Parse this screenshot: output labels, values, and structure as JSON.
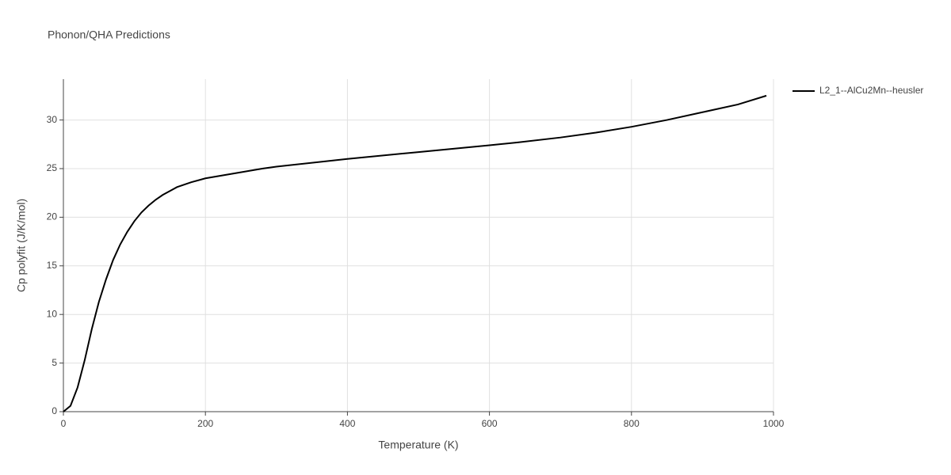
{
  "chart_data": {
    "type": "line",
    "title": "Phonon/QHA Predictions",
    "x_label": "Temperature (K)",
    "y_label": "Cp polyfit (J/K/mol)",
    "x": [
      0,
      10,
      20,
      30,
      40,
      50,
      60,
      70,
      80,
      90,
      100,
      110,
      120,
      130,
      140,
      150,
      160,
      180,
      200,
      240,
      280,
      300,
      400,
      500,
      600,
      640,
      700,
      750,
      800,
      850,
      900,
      950,
      990
    ],
    "series": [
      {
        "name": "L2_1--AlCu2Mn--heusler",
        "color": "#000000",
        "values": [
          0,
          0.6,
          2.5,
          5.3,
          8.5,
          11.3,
          13.6,
          15.6,
          17.2,
          18.5,
          19.6,
          20.5,
          21.2,
          21.8,
          22.3,
          22.7,
          23.1,
          23.6,
          24.0,
          24.5,
          25.0,
          25.2,
          26.0,
          26.7,
          27.4,
          27.7,
          28.2,
          28.7,
          29.3,
          30.0,
          30.8,
          31.6,
          32.5
        ]
      }
    ],
    "xlim": [
      0,
      1000
    ],
    "xticks": [
      0,
      200,
      400,
      600,
      800,
      1000
    ],
    "ylim": [
      0,
      34.2
    ],
    "yticks": [
      0,
      5,
      10,
      15,
      20,
      25,
      30
    ],
    "grid": true,
    "legend": "right"
  }
}
